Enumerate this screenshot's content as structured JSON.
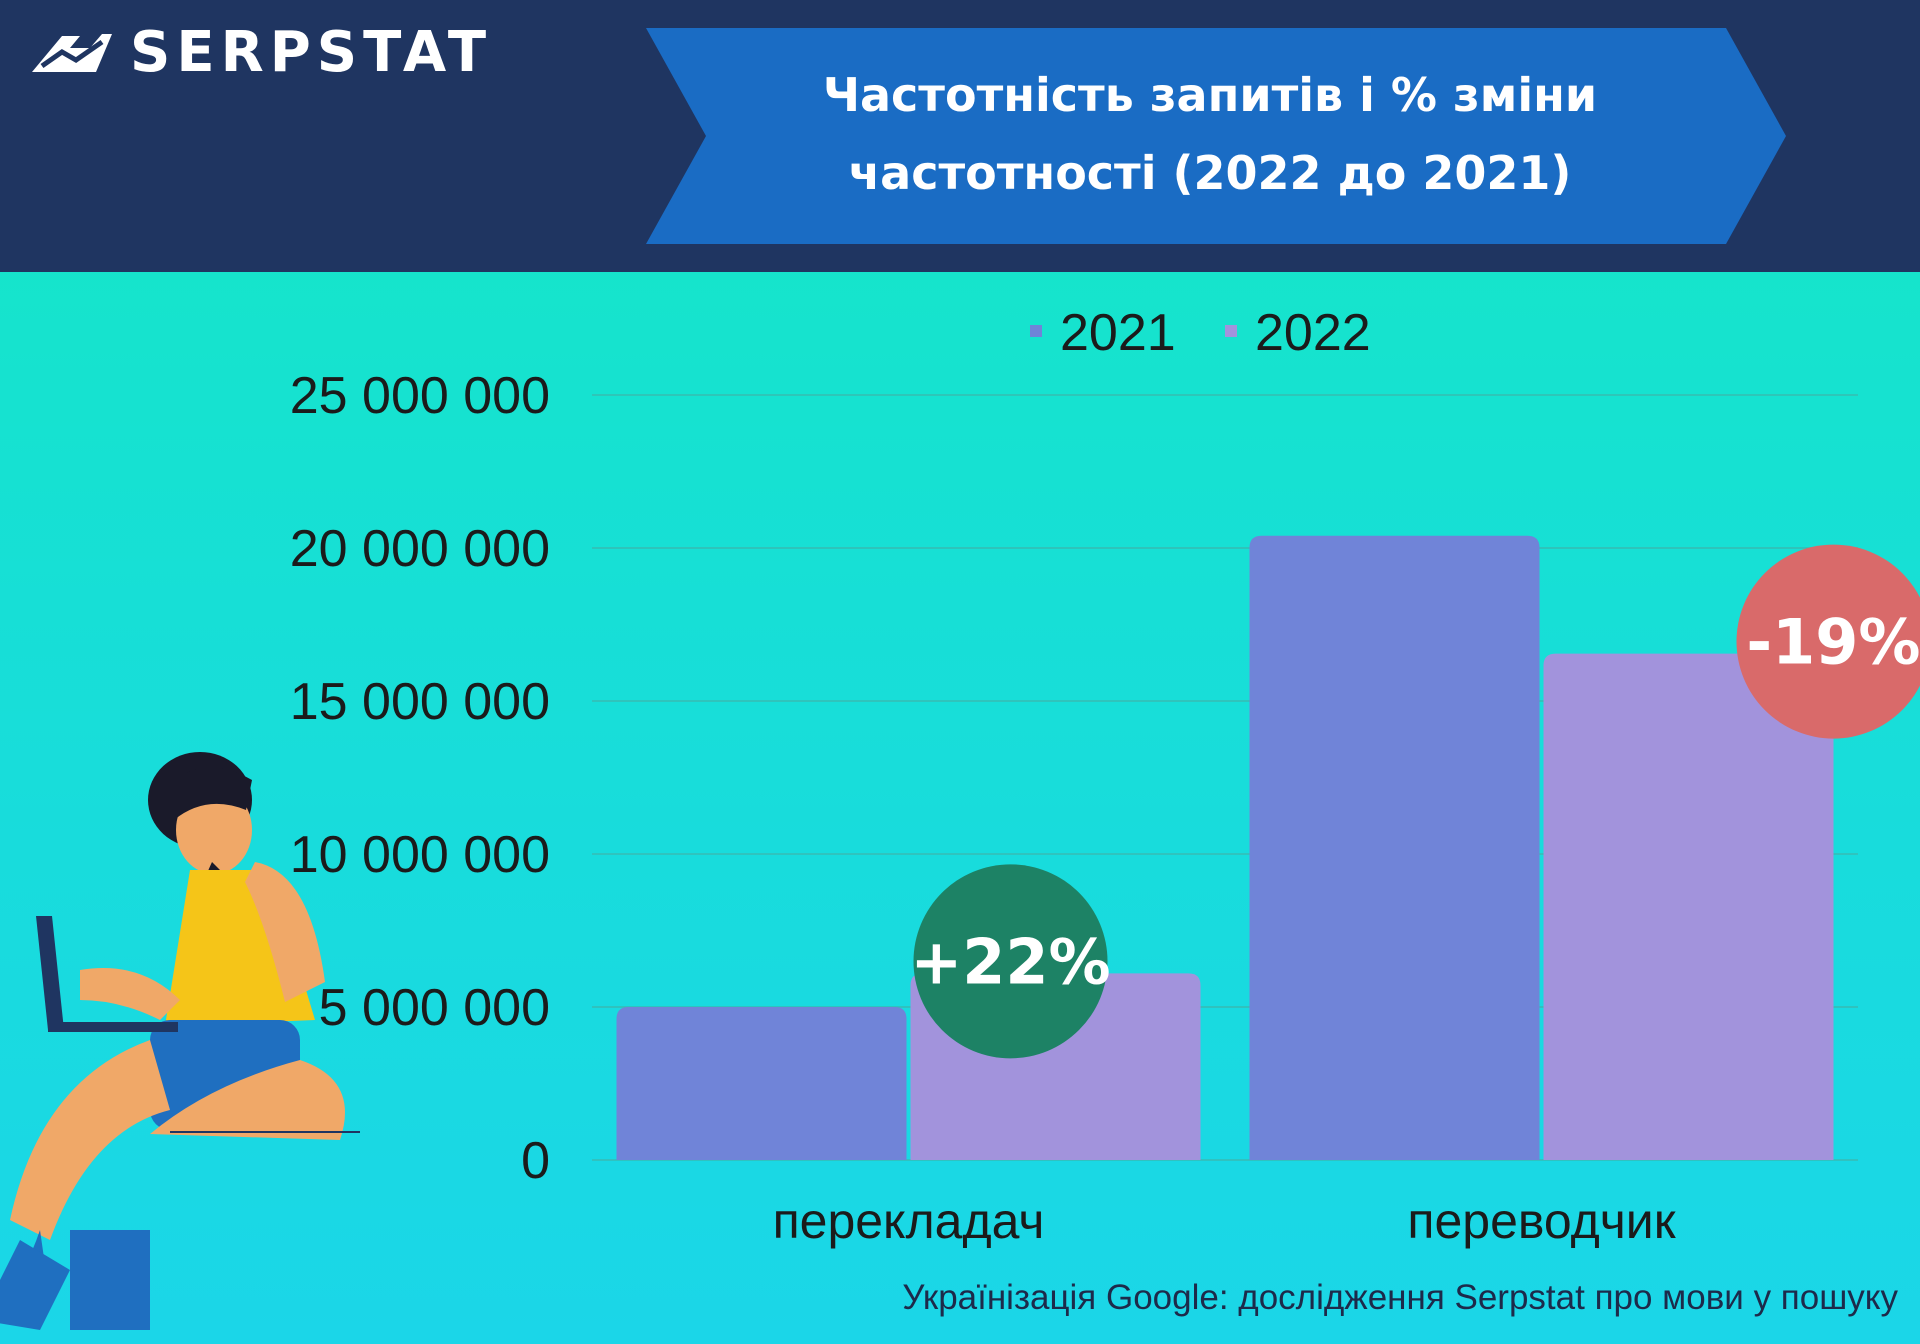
{
  "brand": {
    "name": "SERPSTAT"
  },
  "title": {
    "line1": "Частотність запитів і % зміни",
    "line2": "частотності (2022 до 2021)"
  },
  "footnote": "Українізація Google: дослідження Serpstat про мови у пошуку",
  "chart_data": {
    "type": "bar",
    "categories": [
      "перекладач",
      "переводчик"
    ],
    "series": [
      {
        "name": "2021",
        "values": [
          5000000,
          20400000
        ],
        "color": "#7084d8"
      },
      {
        "name": "2022",
        "values": [
          6100000,
          16550000
        ],
        "color": "#a293dc"
      }
    ],
    "ylim": [
      0,
      25000000
    ],
    "yticks": [
      0,
      5000000,
      10000000,
      15000000,
      20000000,
      25000000
    ],
    "ytick_labels": [
      "0",
      "5 000 000",
      "10 000 000",
      "15 000 000",
      "20 000 000",
      "25 000 000"
    ],
    "grid": true,
    "legend": "top",
    "annotations": [
      {
        "text": "+22%",
        "category_index": 0,
        "color": "#1d8265"
      },
      {
        "text": "-19%",
        "category_index": 1,
        "color": "#d96a6a"
      }
    ]
  },
  "colors": {
    "header_bg": "#1f3561",
    "banner": "#1a6cc4",
    "text": "#1b1b1b"
  },
  "illustration": {
    "icon": "woman-with-laptop-illustration"
  }
}
